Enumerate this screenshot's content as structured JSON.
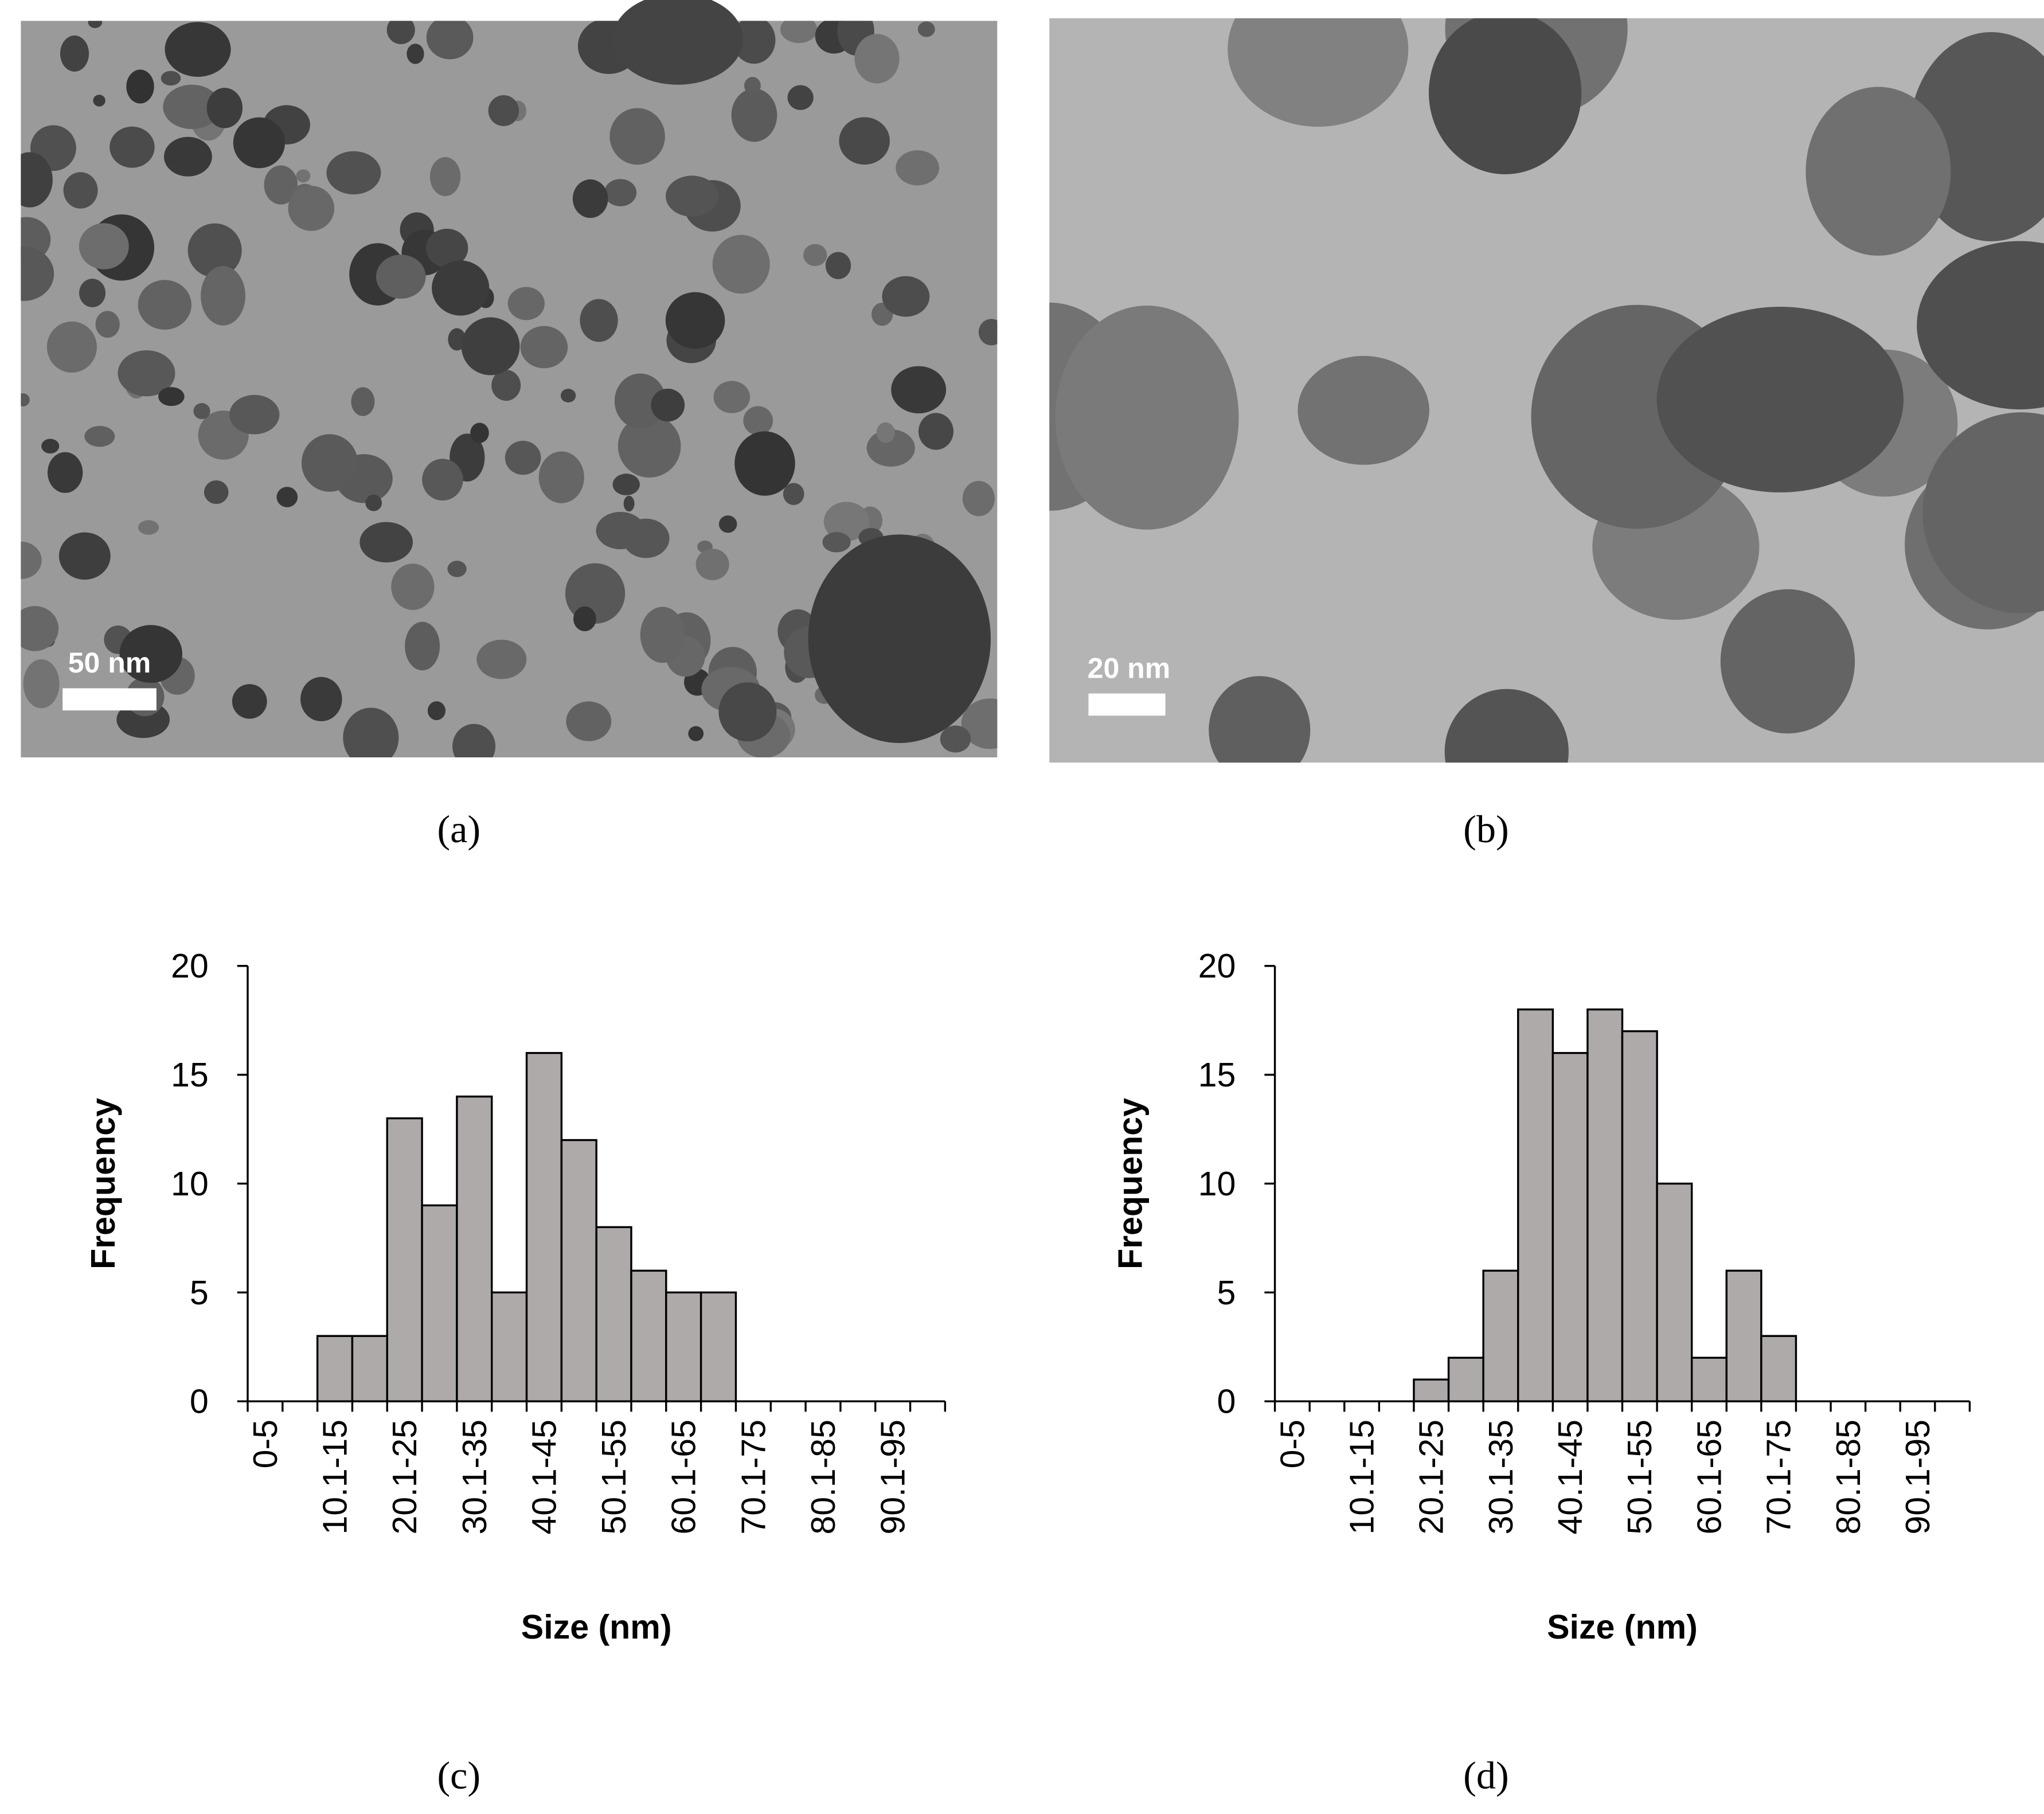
{
  "images": [
    {
      "scale_bar": "50 nm",
      "label": "(a)"
    },
    {
      "scale_bar": "20 nm",
      "label": "(b)"
    }
  ],
  "chart_data": [
    {
      "type": "bar",
      "panel_label": "(c)",
      "xlabel": "Size (nm)",
      "ylabel": "Frequency",
      "categories": [
        "0-5",
        null,
        "10.1-15",
        null,
        "20.1-25",
        null,
        "30.1-35",
        null,
        "40.1-45",
        null,
        "50.1-55",
        null,
        "60.1-65",
        null,
        "70.1-75",
        null,
        "80.1-85",
        null,
        "90.1-95",
        null
      ],
      "values": [
        0,
        0,
        3,
        3,
        13,
        9,
        14,
        5,
        16,
        12,
        8,
        6,
        5,
        5,
        0,
        0,
        0,
        0,
        0,
        0
      ],
      "color": "#aeaaaa",
      "ylim": [
        0,
        20
      ],
      "yticks": [
        0,
        5,
        10,
        15,
        20
      ]
    },
    {
      "type": "bar",
      "panel_label": "(d)",
      "xlabel": "Size (nm)",
      "ylabel": "Frequency",
      "categories": [
        "0-5",
        null,
        "10.1-15",
        null,
        "20.1-25",
        null,
        "30.1-35",
        null,
        "40.1-45",
        null,
        "50.1-55",
        null,
        "60.1-65",
        null,
        "70.1-75",
        null,
        "80.1-85",
        null,
        "90.1-95",
        null
      ],
      "values": [
        0,
        0,
        0,
        0,
        1,
        2,
        6,
        18,
        16,
        18,
        17,
        10,
        2,
        6,
        3,
        0,
        0,
        0,
        0,
        0
      ],
      "color": "#aeaaaa",
      "ylim": [
        0,
        20
      ],
      "yticks": [
        0,
        5,
        10,
        15,
        20
      ]
    }
  ]
}
